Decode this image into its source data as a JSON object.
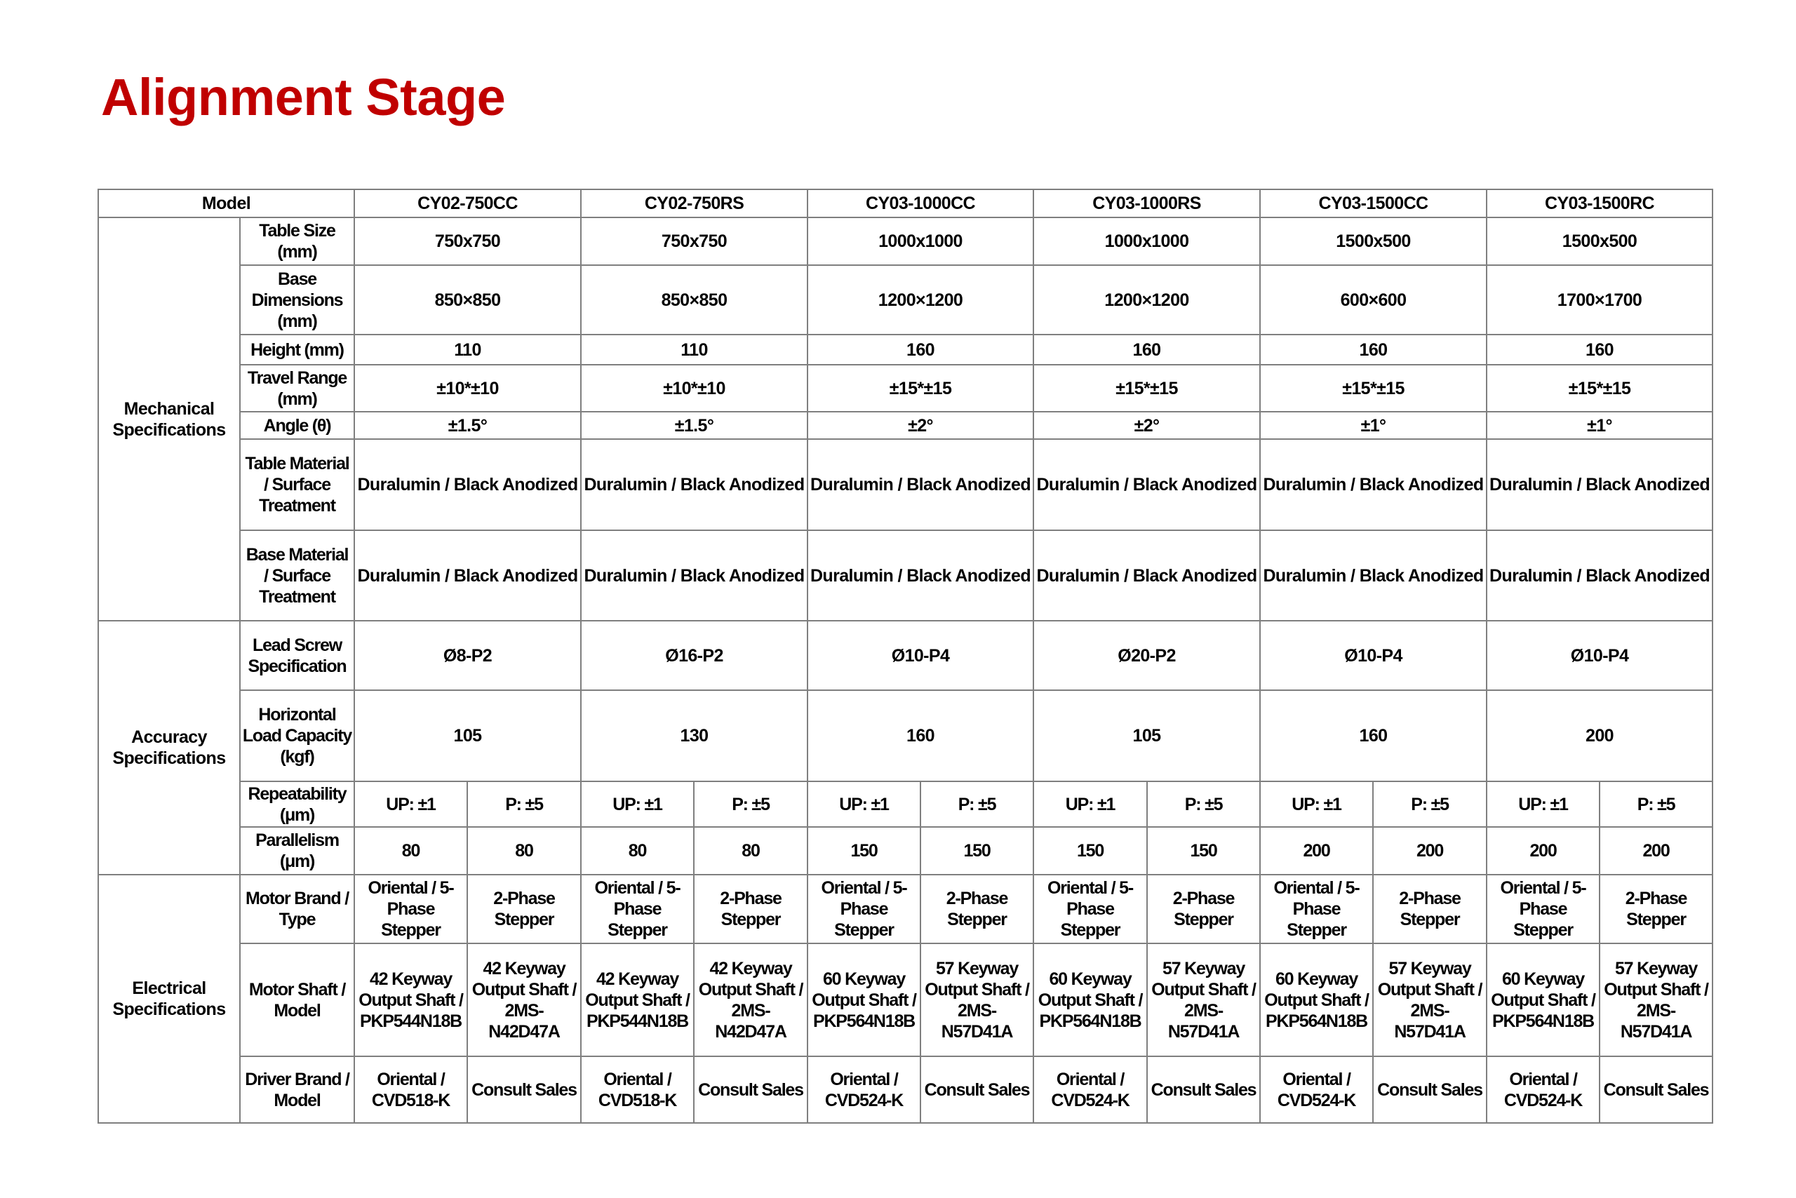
{
  "title": "Alignment Stage",
  "colors": {
    "title": "#c00000",
    "border": "#7f7f7f"
  },
  "table": {
    "model_header": "Model",
    "models": [
      "CY02-750CC",
      "CY02-750RS",
      "CY03-1000CC",
      "CY03-1000RS",
      "CY03-1500CC",
      "CY03-1500RC"
    ],
    "groups": [
      {
        "name": "Mechanical Specifications",
        "rows": [
          {
            "label": "Table Size (mm)",
            "values": [
              "750x750",
              "750x750",
              "1000x1000",
              "1000x1000",
              "1500x500",
              "1500x500"
            ]
          },
          {
            "label": "Base Dimensions (mm)",
            "values": [
              "850×850",
              "850×850",
              "1200×1200",
              "1200×1200",
              "600×600",
              "1700×1700"
            ]
          },
          {
            "label": "Height (mm)",
            "values": [
              "110",
              "110",
              "160",
              "160",
              "160",
              "160"
            ]
          },
          {
            "label": "Travel Range (mm)",
            "values": [
              "±10*±10",
              "±10*±10",
              "±15*±15",
              "±15*±15",
              "±15*±15",
              "±15*±15"
            ]
          },
          {
            "label": "Angle (θ)",
            "values": [
              "±1.5°",
              "±1.5°",
              "±2°",
              "±2°",
              "±1°",
              "±1°"
            ]
          },
          {
            "label": "Table Material / Surface Treatment",
            "values": [
              "Duralumin / Black Anodized",
              "Duralumin / Black Anodized",
              "Duralumin / Black Anodized",
              "Duralumin / Black Anodized",
              "Duralumin / Black Anodized",
              "Duralumin / Black Anodized"
            ]
          },
          {
            "label": "Base Material / Surface Treatment",
            "values": [
              "Duralumin / Black Anodized",
              "Duralumin / Black Anodized",
              "Duralumin / Black Anodized",
              "Duralumin / Black Anodized",
              "Duralumin / Black Anodized",
              "Duralumin / Black Anodized"
            ]
          }
        ]
      },
      {
        "name": "Accuracy Specifications",
        "rows": [
          {
            "label": "Lead Screw Specification",
            "values": [
              "Ø8-P2",
              "Ø16-P2",
              "Ø10-P4",
              "Ø20-P2",
              "Ø10-P4",
              "Ø10-P4"
            ]
          },
          {
            "label": "Horizontal Load Capacity (kgf)",
            "values": [
              "105",
              "130",
              "160",
              "105",
              "160",
              "200"
            ]
          },
          {
            "label": "Repeatability (μm)",
            "split": true,
            "values": [
              "UP:  ±1",
              "P:  ±5",
              "UP:  ±1",
              "P:  ±5",
              "UP:  ±1",
              "P:  ±5",
              "UP:  ±1",
              "P:  ±5",
              "UP:  ±1",
              "P:  ±5",
              "UP:  ±1",
              "P:  ±5"
            ]
          },
          {
            "label": "Parallelism (μm)",
            "split": true,
            "values": [
              "80",
              "80",
              "80",
              "80",
              "150",
              "150",
              "150",
              "150",
              "200",
              "200",
              "200",
              "200"
            ]
          }
        ]
      },
      {
        "name": "Electrical Specifications",
        "rows": [
          {
            "label": "Motor Brand / Type",
            "split": true,
            "values": [
              "Oriental / 5-Phase Stepper",
              "2-Phase Stepper",
              "Oriental / 5-Phase Stepper",
              "2-Phase Stepper",
              "Oriental / 5-Phase Stepper",
              "2-Phase Stepper",
              "Oriental / 5-Phase Stepper",
              "2-Phase Stepper",
              "Oriental / 5-Phase Stepper",
              "2-Phase Stepper",
              "Oriental / 5-Phase Stepper",
              "2-Phase Stepper"
            ]
          },
          {
            "label": "Motor Shaft / Model",
            "split": true,
            "values": [
              "42 Keyway Output Shaft / PKP544N18B",
              "42 Keyway Output Shaft / 2MS-N42D47A",
              "42 Keyway Output Shaft / PKP544N18B",
              "42 Keyway Output Shaft / 2MS-N42D47A",
              "60 Keyway Output Shaft / PKP564N18B",
              "57 Keyway Output Shaft / 2MS-N57D41A",
              "60 Keyway Output Shaft / PKP564N18B",
              "57 Keyway Output Shaft / 2MS-N57D41A",
              "60 Keyway Output Shaft / PKP564N18B",
              "57 Keyway Output Shaft / 2MS-N57D41A",
              "60 Keyway Output Shaft / PKP564N18B",
              "57 Keyway Output Shaft / 2MS-N57D41A"
            ]
          },
          {
            "label": "Driver Brand / Model",
            "split": true,
            "values": [
              "Oriental / CVD518-K",
              "Consult Sales",
              "Oriental / CVD518-K",
              "Consult Sales",
              "Oriental / CVD524-K",
              "Consult Sales",
              "Oriental / CVD524-K",
              "Consult Sales",
              "Oriental / CVD524-K",
              "Consult Sales",
              "Oriental / CVD524-K",
              "Consult Sales"
            ]
          }
        ]
      }
    ]
  }
}
